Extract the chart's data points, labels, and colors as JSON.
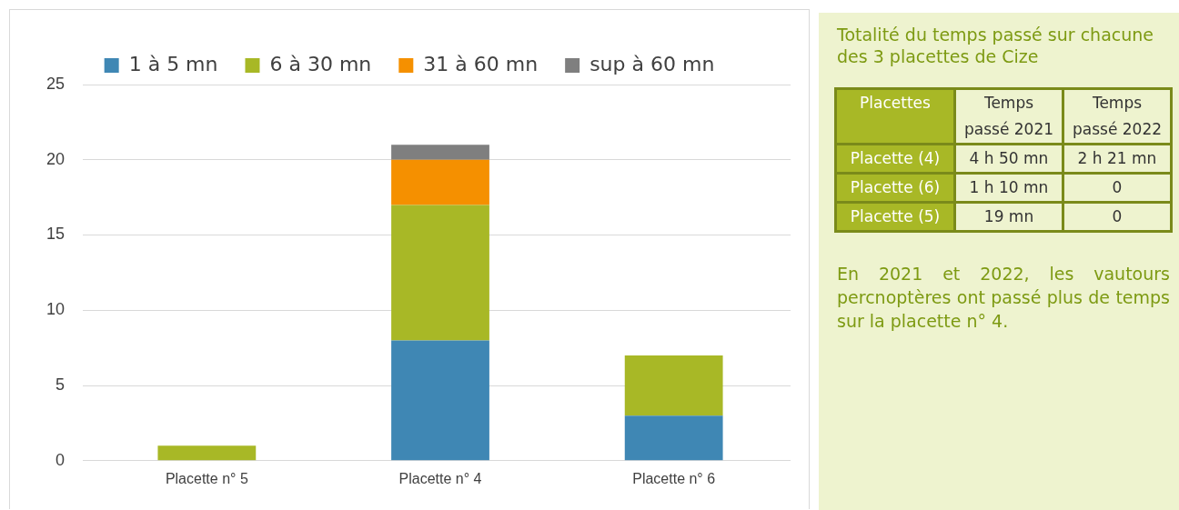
{
  "chart_data": [
    {
      "type": "bar",
      "stacked": true,
      "categories": [
        "Placette n° 5",
        "Placette n° 4",
        "Placette n° 6"
      ],
      "series": [
        {
          "name": "1 à 5 mn",
          "color": "#3f87b4",
          "values": [
            0,
            8,
            3
          ]
        },
        {
          "name": "6 à 30 mn",
          "color": "#a8b826",
          "values": [
            1,
            9,
            4
          ]
        },
        {
          "name": "31 à 60 mn",
          "color": "#f59000",
          "values": [
            0,
            3,
            0
          ]
        },
        {
          "name": "sup à 60 mn",
          "color": "#7f7f7f",
          "values": [
            0,
            1,
            0
          ]
        }
      ],
      "ylim": [
        0,
        25
      ],
      "yticks": [
        0,
        5,
        10,
        15,
        20,
        25
      ],
      "grid": "y",
      "legend": "top"
    },
    {
      "type": "other",
      "title": "Totalité du temps passé sur chacune des 3 placettes de Cize",
      "categories": [
        "Placettes",
        "Temps passé 2021",
        "Temps passé 2022"
      ],
      "y_categories": [
        "Placette (4)",
        "Placette (6)",
        "Placette (5)"
      ],
      "cell_labels": [
        [
          "4 h 50 mn",
          "2 h 21 mn"
        ],
        [
          "1 h 10 mn",
          "0"
        ],
        [
          "19 mn",
          "0"
        ]
      ],
      "annotations": [
        "En 2021 et 2022, les vautours percnoptères ont passé plus de temps sur la placette n° 4."
      ]
    }
  ]
}
